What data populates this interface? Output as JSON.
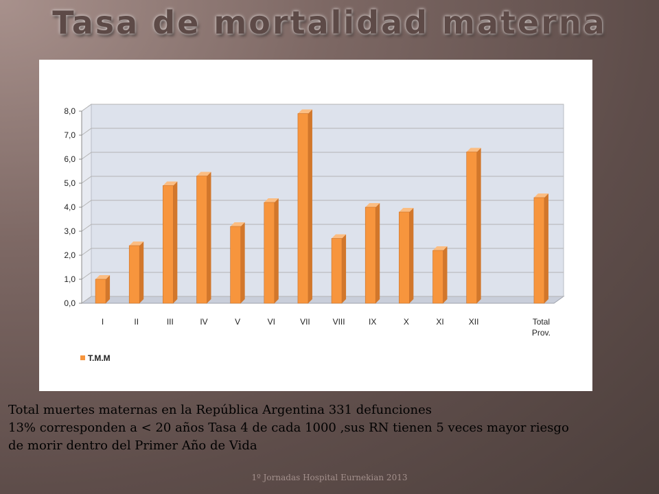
{
  "slide": {
    "title": "Tasa de mortalidad materna",
    "body_lines": [
      "Total muertes maternas en la República Argentina  331 defunciones",
      "13% corresponden a < 20 años  Tasa 4 de cada 1000 ,sus RN tienen 5 veces mayor riesgo",
      "de morir dentro del Primer Año de Vida"
    ],
    "footer": "1º Jornadas Hospital Eurnekian 2013"
  },
  "colors": {
    "bar": "#f7953d",
    "bar_side": "#d2772b",
    "bar_top": "#fbbd82",
    "plot_bg": "#dde2ec",
    "grid": "#b3b3b3"
  },
  "chart_data": {
    "type": "bar",
    "title": "",
    "xlabel": "",
    "ylabel": "",
    "categories": [
      "I",
      "II",
      "III",
      "IV",
      "V",
      "VI",
      "VII",
      "VIII",
      "IX",
      "X",
      "XI",
      "XII",
      "",
      "Total Prov."
    ],
    "series": [
      {
        "name": "T.M.M",
        "values": [
          1.0,
          2.4,
          4.9,
          5.3,
          3.2,
          4.2,
          7.9,
          2.7,
          4.0,
          3.8,
          2.2,
          6.3,
          null,
          4.4
        ]
      }
    ],
    "ylim": [
      0,
      8
    ],
    "y_ticks": [
      "0,0",
      "1,0",
      "2,0",
      "3,0",
      "4,0",
      "5,0",
      "6,0",
      "7,0",
      "8,0"
    ],
    "grid": true,
    "legend": "bottom-left"
  }
}
